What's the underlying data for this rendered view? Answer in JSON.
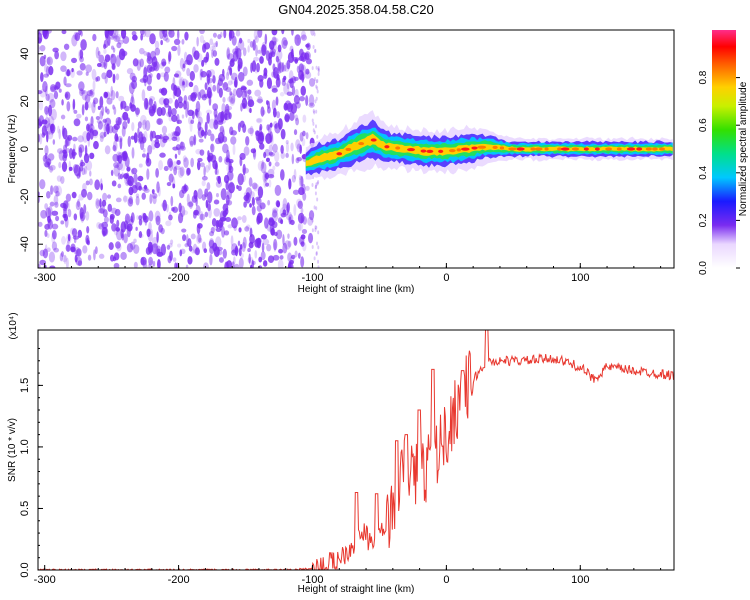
{
  "title": "GN04.2025.358.04.58.C20",
  "colors": {
    "snr_line": "#e8382f",
    "noise_dot": "#7a2cf0",
    "axis": "#000000",
    "background": "#ffffff"
  },
  "chart_data": [
    {
      "type": "heatmap",
      "panel": "spectrogram",
      "xlabel": "Height of straight line (km)",
      "ylabel": "Frequency (Hz)",
      "xlim": [
        -305,
        170
      ],
      "ylim": [
        -50,
        50
      ],
      "xticks": [
        -300,
        -200,
        -100,
        0,
        100
      ],
      "yticks": [
        -40,
        -20,
        0,
        20,
        40
      ],
      "xtick_labels": [
        "-300",
        "-200",
        "-100",
        "0",
        "100"
      ],
      "ytick_labels": [
        "-40",
        "-20",
        "0",
        "20",
        "40"
      ],
      "noise_region": {
        "x_from": -305,
        "x_to": -100,
        "sparse_to": -95
      },
      "ridge": {
        "x": [
          -105,
          -95,
          -80,
          -65,
          -55,
          -45,
          -30,
          -15,
          0,
          15,
          30,
          50,
          80,
          110,
          140,
          170
        ],
        "freq": [
          -6,
          -4,
          -2,
          2,
          4,
          1,
          0,
          -1,
          -1,
          0,
          1,
          0,
          0,
          0,
          0,
          0
        ],
        "width_hz": [
          3,
          4,
          4,
          5,
          5,
          4,
          4,
          4,
          4,
          4,
          3,
          2,
          2,
          2,
          2,
          2
        ]
      },
      "colorbar": {
        "label": "Normalized spectral amplitude",
        "range": [
          0,
          1
        ],
        "ticks": [
          0.0,
          0.2,
          0.4,
          0.6,
          0.8
        ],
        "tick_labels": [
          "0.0",
          "0.2",
          "0.4",
          "0.6",
          "0.8"
        ]
      }
    },
    {
      "type": "line",
      "panel": "snr",
      "xlabel": "Height of straight line (km)",
      "ylabel": "SNR (10 * v/v)",
      "y_multiplier": "(x10⁴)",
      "xlim": [
        -305,
        170
      ],
      "ylim": [
        0,
        1.95
      ],
      "xticks": [
        -300,
        -200,
        -100,
        0,
        100
      ],
      "yticks": [
        0.0,
        0.5,
        1.0,
        1.5
      ],
      "xtick_labels": [
        "-300",
        "-200",
        "-100",
        "0",
        "100"
      ],
      "ytick_labels": [
        "0.0",
        "0.5",
        "1.0",
        "1.5"
      ],
      "series": [
        {
          "name": "SNR",
          "x": [
            -305,
            -120,
            -100,
            -90,
            -80,
            -70,
            -62,
            -55,
            -50,
            -40,
            -30,
            -20,
            -10,
            0,
            10,
            20,
            30,
            40,
            60,
            80,
            100,
            110,
            120,
            140,
            170
          ],
          "y": [
            0.0,
            0.0,
            0.01,
            0.03,
            0.1,
            0.2,
            0.3,
            0.2,
            0.25,
            0.5,
            0.85,
            0.75,
            0.9,
            1.1,
            1.4,
            1.55,
            1.68,
            1.7,
            1.7,
            1.72,
            1.65,
            1.55,
            1.65,
            1.62,
            1.58
          ],
          "spikes": [
            {
              "x": -67,
              "y": 0.63
            },
            {
              "x": -52,
              "y": 0.62
            },
            {
              "x": -37,
              "y": 1.05
            },
            {
              "x": -30,
              "y": 1.1
            },
            {
              "x": -20,
              "y": 1.3
            },
            {
              "x": -10,
              "y": 1.63
            },
            {
              "x": 12,
              "y": 1.62
            },
            {
              "x": 30,
              "y": 1.95
            }
          ]
        }
      ]
    }
  ]
}
